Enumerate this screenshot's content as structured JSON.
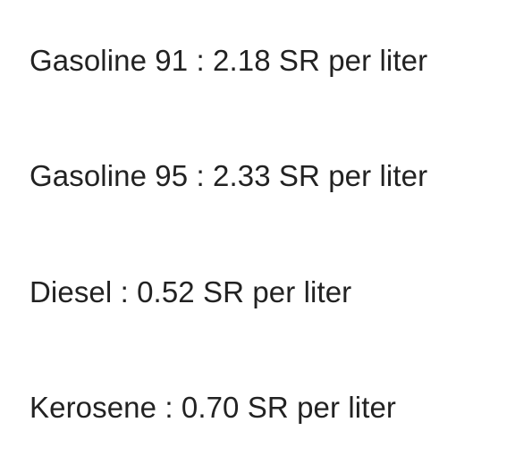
{
  "fuel_prices": {
    "items": [
      {
        "label": "Gasoline 91 : 2.18 SR per liter"
      },
      {
        "label": "Gasoline 95 : 2.33 SR per liter"
      },
      {
        "label": "Diesel : 0.52 SR per liter"
      },
      {
        "label": "Kerosene : 0.70 SR per liter"
      }
    ]
  }
}
